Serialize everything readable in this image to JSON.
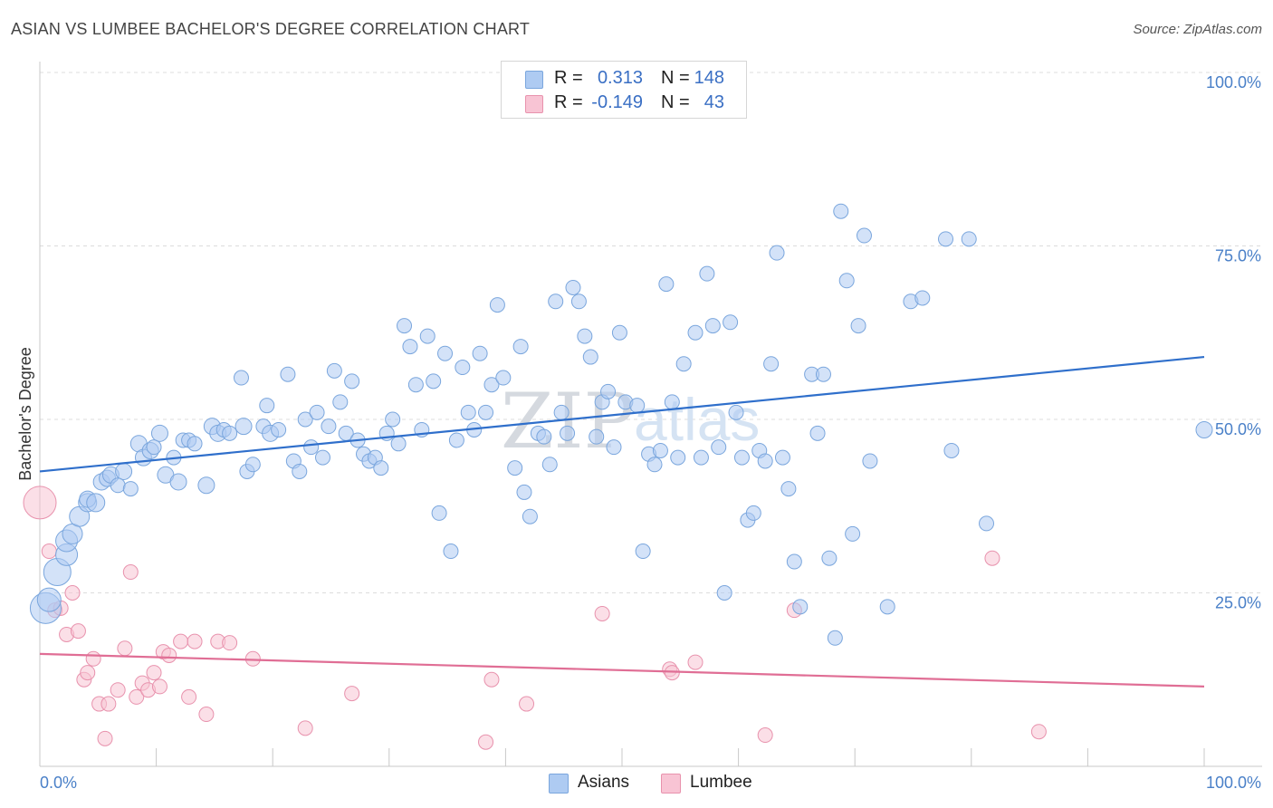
{
  "header": {
    "title": "ASIAN VS LUMBEE BACHELOR'S DEGREE CORRELATION CHART",
    "source": "Source: ZipAtlas.com"
  },
  "watermark": {
    "part1": "ZIP",
    "part2": "atlas"
  },
  "legend_top": {
    "rows": [
      {
        "r_label": "R =",
        "r_value": "0.313",
        "n_label": "N =",
        "n_value": "148",
        "color": "#aecbf2",
        "border": "#7aa6dd"
      },
      {
        "r_label": "R =",
        "r_value": "-0.149",
        "n_label": "N =",
        "n_value": "43",
        "color": "#f8c4d4",
        "border": "#e892ad"
      }
    ]
  },
  "legend_bottom": {
    "items": [
      "Asians",
      "Lumbee"
    ]
  },
  "chart_data": {
    "type": "scatter",
    "title": "ASIAN VS LUMBEE BACHELOR'S DEGREE CORRELATION CHART",
    "xlabel": "",
    "ylabel": "Bachelor's Degree",
    "xlim": [
      0,
      100
    ],
    "ylim": [
      0,
      100
    ],
    "x_tick_labels": [
      "0.0%",
      "100.0%"
    ],
    "y_tick_labels": [
      "100.0%",
      "75.0%",
      "50.0%",
      "25.0%"
    ],
    "y_ticks": [
      100,
      75,
      50,
      25
    ],
    "grid": "horizontal dashed",
    "legend_placement": "bottom-center",
    "series": [
      {
        "name": "Asians",
        "color": "#7aa6dd",
        "fill": "#aecbf2",
        "line_color": "#2f6fcb",
        "trend": {
          "x": [
            0,
            100
          ],
          "y": [
            42.5,
            59.0
          ]
        },
        "points": [
          [
            0.5,
            22.8,
            17
          ],
          [
            0.8,
            24,
            13
          ],
          [
            1.5,
            28,
            15
          ],
          [
            2.3,
            30.5,
            12
          ],
          [
            2.3,
            32.5,
            12
          ],
          [
            2.8,
            33.5,
            11
          ],
          [
            3.4,
            36,
            11
          ],
          [
            4.1,
            38,
            10
          ],
          [
            4.1,
            38.5,
            9
          ],
          [
            4.8,
            38,
            10
          ],
          [
            5.3,
            41,
            9
          ],
          [
            5.8,
            41.5,
            9
          ],
          [
            6.1,
            42,
            9
          ],
          [
            7.2,
            42.5,
            9
          ],
          [
            6.7,
            40.5,
            8
          ],
          [
            7.8,
            40,
            8
          ],
          [
            8.5,
            46.5,
            9
          ],
          [
            8.9,
            44.5,
            9
          ],
          [
            9.5,
            45.5,
            9
          ],
          [
            9.8,
            46,
            8
          ],
          [
            10.3,
            48,
            9
          ],
          [
            10.8,
            42,
            9
          ],
          [
            11.5,
            44.5,
            8
          ],
          [
            11.9,
            41,
            9
          ],
          [
            12.3,
            47,
            8
          ],
          [
            12.8,
            47,
            8
          ],
          [
            13.3,
            46.5,
            8
          ],
          [
            14.3,
            40.5,
            9
          ],
          [
            14.8,
            49,
            9
          ],
          [
            15.3,
            48,
            9
          ],
          [
            15.8,
            48.5,
            8
          ],
          [
            16.3,
            48,
            8
          ],
          [
            17.3,
            56,
            8
          ],
          [
            17.5,
            49,
            9
          ],
          [
            17.8,
            42.5,
            8
          ],
          [
            18.3,
            43.5,
            8
          ],
          [
            19.2,
            49,
            8
          ],
          [
            19.5,
            52,
            8
          ],
          [
            19.8,
            48,
            9
          ],
          [
            20.5,
            48.5,
            8
          ],
          [
            21.3,
            56.5,
            8
          ],
          [
            21.8,
            44,
            8
          ],
          [
            22.3,
            42.5,
            8
          ],
          [
            22.8,
            50,
            8
          ],
          [
            23.3,
            46,
            8
          ],
          [
            23.8,
            51,
            8
          ],
          [
            24.3,
            44.5,
            8
          ],
          [
            24.8,
            49,
            8
          ],
          [
            25.3,
            57,
            8
          ],
          [
            25.8,
            52.5,
            8
          ],
          [
            26.3,
            48,
            8
          ],
          [
            26.8,
            55.5,
            8
          ],
          [
            27.3,
            47,
            8
          ],
          [
            27.8,
            45,
            8
          ],
          [
            28.3,
            44,
            8
          ],
          [
            28.8,
            44.5,
            8
          ],
          [
            29.3,
            43,
            8
          ],
          [
            29.8,
            48,
            8
          ],
          [
            30.3,
            50,
            8
          ],
          [
            30.8,
            46.5,
            8
          ],
          [
            31.3,
            63.5,
            8
          ],
          [
            31.8,
            60.5,
            8
          ],
          [
            32.3,
            55,
            8
          ],
          [
            32.8,
            48.5,
            8
          ],
          [
            33.3,
            62,
            8
          ],
          [
            33.8,
            55.5,
            8
          ],
          [
            34.3,
            36.5,
            8
          ],
          [
            34.8,
            59.5,
            8
          ],
          [
            35.3,
            31,
            8
          ],
          [
            35.8,
            47,
            8
          ],
          [
            36.3,
            57.5,
            8
          ],
          [
            36.8,
            51,
            8
          ],
          [
            37.3,
            48.5,
            8
          ],
          [
            37.8,
            59.5,
            8
          ],
          [
            38.3,
            51,
            8
          ],
          [
            38.8,
            55,
            8
          ],
          [
            39.3,
            66.5,
            8
          ],
          [
            39.8,
            56,
            8
          ],
          [
            40.8,
            43,
            8
          ],
          [
            41.3,
            60.5,
            8
          ],
          [
            41.6,
            39.5,
            8
          ],
          [
            42.1,
            36,
            8
          ],
          [
            42.8,
            48,
            8
          ],
          [
            43.3,
            47.5,
            8
          ],
          [
            43.8,
            43.5,
            8
          ],
          [
            44.3,
            67,
            8
          ],
          [
            44.8,
            51,
            8
          ],
          [
            45.3,
            48,
            8
          ],
          [
            45.8,
            69,
            8
          ],
          [
            46.3,
            67,
            8
          ],
          [
            46.8,
            62,
            8
          ],
          [
            47.3,
            59,
            8
          ],
          [
            47.8,
            47.5,
            8
          ],
          [
            48.3,
            52.5,
            8
          ],
          [
            48.8,
            54,
            8
          ],
          [
            49.3,
            46,
            8
          ],
          [
            49.8,
            62.5,
            8
          ],
          [
            50.3,
            52.5,
            8
          ],
          [
            51.3,
            52,
            8
          ],
          [
            51.8,
            31,
            8
          ],
          [
            52.3,
            45,
            8
          ],
          [
            52.8,
            43.5,
            8
          ],
          [
            53.3,
            45.5,
            8
          ],
          [
            53.8,
            69.5,
            8
          ],
          [
            54.3,
            52.5,
            8
          ],
          [
            54.8,
            44.5,
            8
          ],
          [
            55.3,
            58,
            8
          ],
          [
            56.3,
            62.5,
            8
          ],
          [
            56.8,
            44.5,
            8
          ],
          [
            57.3,
            71,
            8
          ],
          [
            57.8,
            63.5,
            8
          ],
          [
            58.3,
            46,
            8
          ],
          [
            58.8,
            25,
            8
          ],
          [
            59.3,
            64,
            8
          ],
          [
            59.8,
            51,
            8
          ],
          [
            60.3,
            44.5,
            8
          ],
          [
            60.8,
            35.5,
            8
          ],
          [
            61.3,
            36.5,
            8
          ],
          [
            61.8,
            45.5,
            8
          ],
          [
            62.3,
            44,
            8
          ],
          [
            62.8,
            58,
            8
          ],
          [
            63.3,
            74,
            8
          ],
          [
            63.8,
            44.5,
            8
          ],
          [
            64.3,
            40,
            8
          ],
          [
            64.8,
            29.5,
            8
          ],
          [
            65.3,
            23,
            8
          ],
          [
            66.3,
            56.5,
            8
          ],
          [
            66.8,
            48,
            8
          ],
          [
            67.3,
            56.5,
            8
          ],
          [
            67.8,
            30,
            8
          ],
          [
            68.3,
            18.5,
            8
          ],
          [
            68.8,
            80,
            8
          ],
          [
            69.3,
            70,
            8
          ],
          [
            69.8,
            33.5,
            8
          ],
          [
            70.3,
            63.5,
            8
          ],
          [
            70.8,
            76.5,
            8
          ],
          [
            71.3,
            44,
            8
          ],
          [
            72.8,
            23,
            8
          ],
          [
            74.8,
            67,
            8
          ],
          [
            75.8,
            67.5,
            8
          ],
          [
            77.8,
            76,
            8
          ],
          [
            78.3,
            45.5,
            8
          ],
          [
            79.8,
            76,
            8
          ],
          [
            81.3,
            35,
            8
          ],
          [
            100,
            48.5,
            9
          ]
        ]
      },
      {
        "name": "Lumbee",
        "color": "#e892ad",
        "fill": "#f8c4d4",
        "line_color": "#e06e95",
        "trend": {
          "x": [
            0,
            100
          ],
          "y": [
            16.2,
            11.5
          ]
        },
        "points": [
          [
            0,
            38,
            18
          ],
          [
            0.8,
            31,
            8
          ],
          [
            1.3,
            22.5,
            8
          ],
          [
            1.8,
            22.8,
            8
          ],
          [
            2.3,
            19,
            8
          ],
          [
            2.8,
            25,
            8
          ],
          [
            3.3,
            19.5,
            8
          ],
          [
            3.8,
            12.5,
            8
          ],
          [
            4.1,
            13.5,
            8
          ],
          [
            4.6,
            15.5,
            8
          ],
          [
            5.1,
            9,
            8
          ],
          [
            5.6,
            4,
            8
          ],
          [
            5.9,
            9,
            8
          ],
          [
            6.7,
            11,
            8
          ],
          [
            7.3,
            17,
            8
          ],
          [
            7.8,
            28,
            8
          ],
          [
            8.3,
            10,
            8
          ],
          [
            8.8,
            12,
            8
          ],
          [
            9.3,
            11,
            8
          ],
          [
            9.8,
            13.5,
            8
          ],
          [
            10.3,
            11.5,
            8
          ],
          [
            10.6,
            16.5,
            8
          ],
          [
            11.1,
            16,
            8
          ],
          [
            12.1,
            18,
            8
          ],
          [
            12.8,
            10,
            8
          ],
          [
            13.3,
            18,
            8
          ],
          [
            14.3,
            7.5,
            8
          ],
          [
            15.3,
            18,
            8
          ],
          [
            16.3,
            17.8,
            8
          ],
          [
            18.3,
            15.5,
            8
          ],
          [
            22.8,
            5.5,
            8
          ],
          [
            26.8,
            10.5,
            8
          ],
          [
            38.3,
            3.5,
            8
          ],
          [
            38.8,
            12.5,
            8
          ],
          [
            41.8,
            9,
            8
          ],
          [
            48.3,
            22,
            8
          ],
          [
            54.1,
            14,
            8
          ],
          [
            54.3,
            13.5,
            8
          ],
          [
            56.3,
            15,
            8
          ],
          [
            62.3,
            4.5,
            8
          ],
          [
            64.8,
            22.5,
            8
          ],
          [
            81.8,
            30,
            8
          ],
          [
            85.8,
            5,
            8
          ]
        ]
      }
    ]
  }
}
